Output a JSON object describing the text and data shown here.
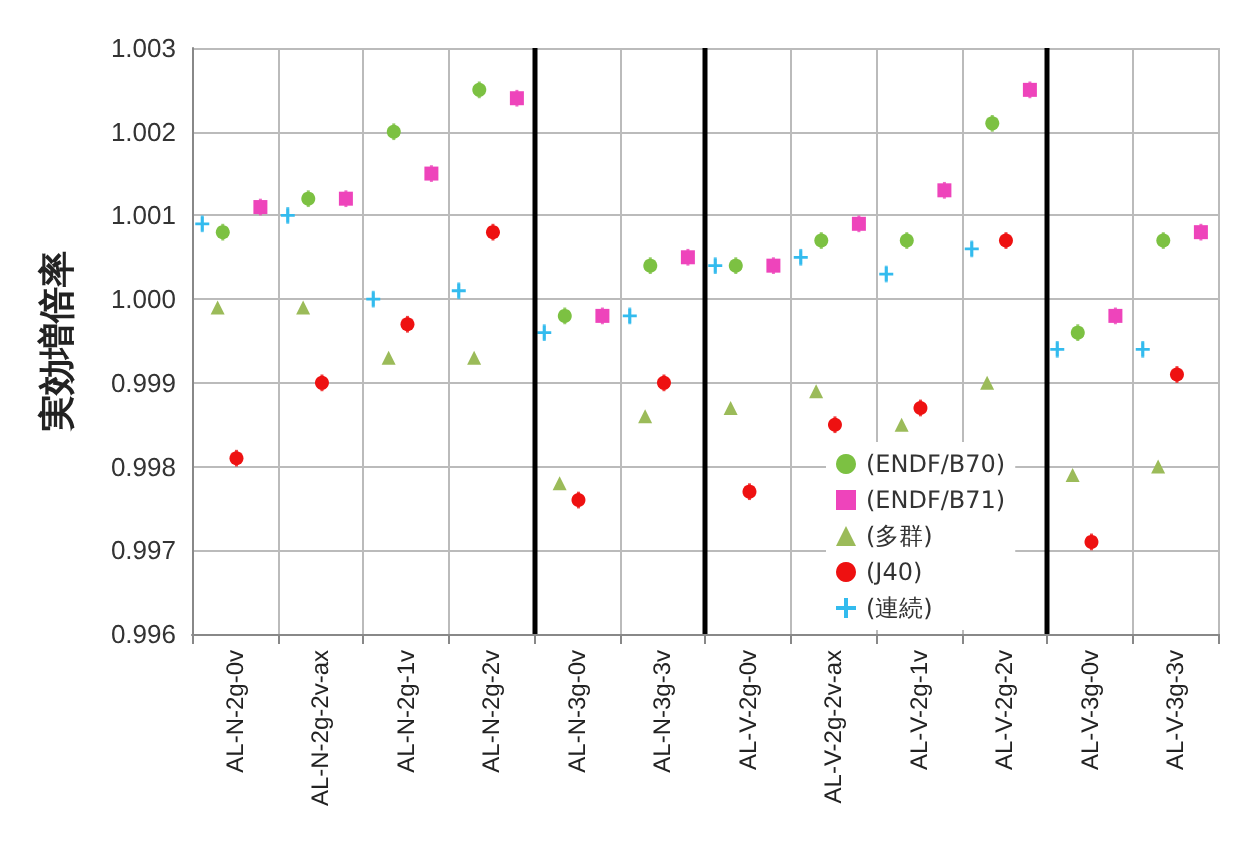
{
  "chart_data": {
    "type": "scatter",
    "ylabel": "実効増倍率",
    "categories": [
      "AL-N-2g-0v",
      "AL-N-2g-2v-ax",
      "AL-N-2g-1v",
      "AL-N-2g-2v",
      "AL-N-3g-0v",
      "AL-N-3g-3v",
      "AL-V-2g-0v",
      "AL-V-2g-2v-ax",
      "AL-V-2g-1v",
      "AL-V-2g-2v",
      "AL-V-3g-0v",
      "AL-V-3g-3v"
    ],
    "series": [
      {
        "name": "(ENDF/B70)",
        "color": "#7cc142",
        "marker": "circle",
        "values": [
          1.0008,
          1.0012,
          1.002,
          1.0025,
          0.9998,
          1.0004,
          1.0004,
          1.0007,
          1.0007,
          1.0021,
          0.9996,
          1.0007
        ],
        "errors": [
          0.0001,
          0.0001,
          0.0001,
          0.0001,
          0.0001,
          0.0001,
          0.0001,
          0.0001,
          0.0001,
          0.0001,
          0.0001,
          0.0001
        ]
      },
      {
        "name": "(ENDF/B71)",
        "color": "#ee44bb",
        "marker": "square",
        "values": [
          1.0011,
          1.0012,
          1.0015,
          1.0024,
          0.9998,
          1.0005,
          1.0004,
          1.0009,
          1.0013,
          1.0025,
          0.9998,
          1.0008
        ],
        "errors": [
          0.0001,
          0.0001,
          0.0001,
          0.0001,
          0.0001,
          0.0001,
          0.0001,
          0.0001,
          0.0001,
          0.0001,
          0.0001,
          0.0001
        ]
      },
      {
        "name": "(多群)",
        "color": "#9bbb59",
        "marker": "triangle",
        "values": [
          0.9999,
          0.9999,
          0.9993,
          0.9993,
          0.9978,
          0.9986,
          0.9987,
          0.9989,
          0.9985,
          0.999,
          0.9979,
          0.998
        ]
      },
      {
        "name": "(J40)",
        "color": "#ee1111",
        "marker": "circle",
        "values": [
          0.9981,
          0.999,
          0.9997,
          1.0008,
          0.9976,
          0.999,
          0.9977,
          0.9985,
          0.9987,
          1.0007,
          0.9971,
          0.9991
        ],
        "errors": [
          0.0001,
          0.0001,
          0.0001,
          0.0001,
          0.0001,
          0.0001,
          0.0001,
          0.0001,
          0.0001,
          0.0001,
          0.0001,
          0.0001
        ]
      },
      {
        "name": "(連続)",
        "color": "#33bbee",
        "marker": "cross",
        "values": [
          1.0009,
          1.001,
          1.0,
          1.0001,
          0.9996,
          0.9998,
          1.0004,
          1.0005,
          1.0003,
          1.0006,
          0.9994,
          0.9994
        ],
        "errors": [
          0.0001,
          0.0001,
          0.0001,
          0.0001,
          0.0001,
          0.0001,
          0.0001,
          0.0001,
          0.0001,
          0.0001,
          0.0001,
          0.0001
        ]
      }
    ],
    "ylim": [
      0.996,
      1.003
    ],
    "yticks": [
      {
        "value": 0.996,
        "label": "0.996"
      },
      {
        "value": 0.997,
        "label": "0.997"
      },
      {
        "value": 0.998,
        "label": "0.998"
      },
      {
        "value": 0.999,
        "label": "0.999"
      },
      {
        "value": 1.0,
        "label": "1.000"
      },
      {
        "value": 1.001,
        "label": "1.001"
      },
      {
        "value": 1.002,
        "label": "1.002"
      },
      {
        "value": 1.003,
        "label": "1.003"
      }
    ],
    "grid": true,
    "legend": "bottom"
  }
}
